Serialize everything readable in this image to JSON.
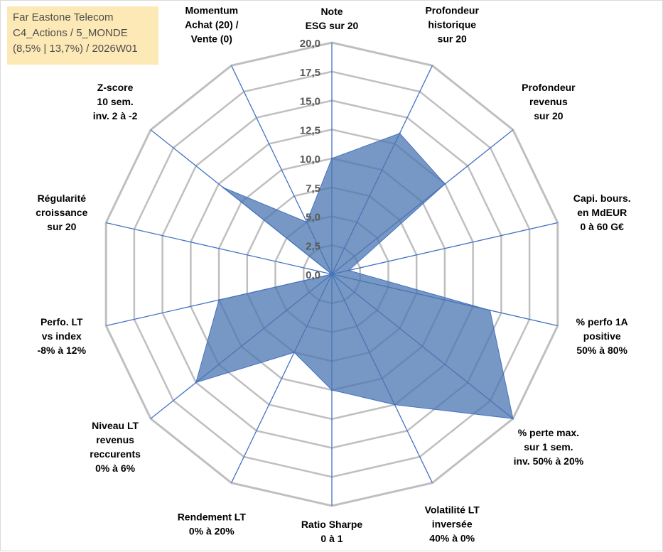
{
  "colors": {
    "grid": "#bfbfbf",
    "spoke": "#4472c4",
    "fill": "#4a76b0",
    "fill_opacity": 0.75,
    "outline": "#4472c4",
    "title_bg": "#fde9b6"
  },
  "title_box": {
    "line1": "Far Eastone Telecom",
    "line2": "C4_Actions / 5_MONDE",
    "line3": "(8,5% | 13,7%) / 2026W01"
  },
  "chart_data": {
    "type": "radar",
    "rmin": 0,
    "rmax": 20,
    "tick_step": 2.5,
    "tick_labels": [
      "0,0",
      "2,5",
      "5,0",
      "7,5",
      "10,0",
      "12,5",
      "15,0",
      "17,5",
      "20,0"
    ],
    "axes": [
      {
        "label": [
          "Note",
          "ESG sur 20"
        ],
        "value": 10.0
      },
      {
        "label": [
          "Profondeur",
          "historique",
          "sur 20"
        ],
        "value": 13.5
      },
      {
        "label": [
          "Profondeur",
          "revenus",
          "sur 20"
        ],
        "value": 12.5
      },
      {
        "label": [
          "Capi. bours.",
          "en MdEUR",
          "0 à 60 G€"
        ],
        "value": 1.5
      },
      {
        "label": [
          "% perfo 1A",
          "positive",
          "50% à 80%"
        ],
        "value": 14.0
      },
      {
        "label": [
          "% perte max.",
          "sur 1 sem.",
          "inv. 50% à 20%"
        ],
        "value": 20.0
      },
      {
        "label": [
          "Volatilité LT",
          "inversée",
          "40% à 0%"
        ],
        "value": 12.5
      },
      {
        "label": [
          "Ratio Sharpe",
          "0 à 1"
        ],
        "value": 10.0
      },
      {
        "label": [
          "Rendement LT",
          "0% à 20%"
        ],
        "value": 7.5
      },
      {
        "label": [
          "Niveau LT",
          "revenus",
          "reccurents",
          "0% à 6%"
        ],
        "value": 15.0
      },
      {
        "label": [
          "Perfo. LT",
          "vs index",
          "-8% à 12%"
        ],
        "value": 10.0
      },
      {
        "label": [
          "Régularité",
          "croissance",
          "sur 20"
        ],
        "value": 0.0
      },
      {
        "label": [
          "Z-score",
          "10 sem.",
          "inv. 2 à -2"
        ],
        "value": 12.0
      },
      {
        "label": [
          "Momentum",
          "Achat (20) /",
          "Vente (0)"
        ],
        "value": 5.0
      }
    ]
  }
}
